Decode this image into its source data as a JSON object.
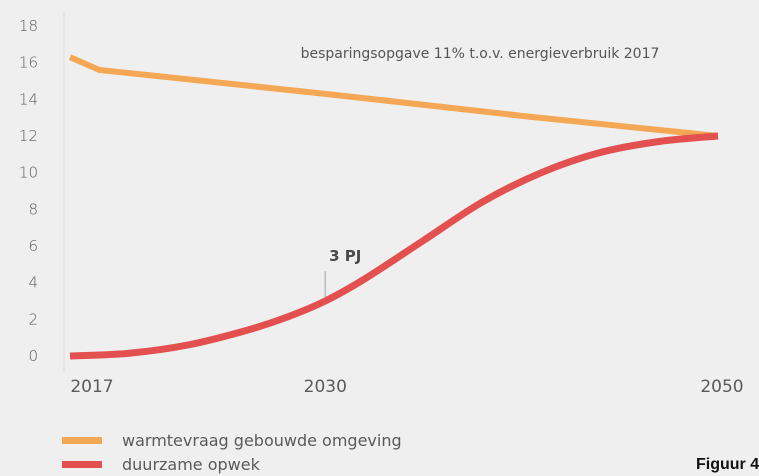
{
  "chart_data": {
    "type": "line",
    "x": [
      2017,
      2030,
      2050
    ],
    "x_ticks": [
      "2017",
      "2030",
      "2050"
    ],
    "y_ticks": [
      "0",
      "2",
      "4",
      "6",
      "8",
      "10",
      "12",
      "14",
      "16",
      "18"
    ],
    "ylim": [
      0,
      18
    ],
    "xlim": [
      2017,
      2050
    ],
    "grid": false,
    "legend_position": "bottom-left",
    "annotation": "besparingsopgave 11% t.o.v. energieverbruik 2017",
    "data_label": {
      "text": "3 PJ",
      "x": 2030,
      "y": 3
    },
    "series": [
      {
        "name": "warmtevraag gebouwde omgeving",
        "color": "#f4a855",
        "points": [
          [
            2017,
            16.3
          ],
          [
            2018.5,
            15.6
          ],
          [
            2030,
            14.3
          ],
          [
            2040,
            13.1
          ],
          [
            2050,
            12.0
          ]
        ]
      },
      {
        "name": "duurzame opwek",
        "color": "#e2514f",
        "points": [
          [
            2017,
            0.0
          ],
          [
            2020,
            0.15
          ],
          [
            2023,
            0.6
          ],
          [
            2026,
            1.4
          ],
          [
            2028,
            2.1
          ],
          [
            2030,
            3.0
          ],
          [
            2032,
            4.2
          ],
          [
            2035,
            6.3
          ],
          [
            2038,
            8.4
          ],
          [
            2041,
            10.0
          ],
          [
            2044,
            11.1
          ],
          [
            2047,
            11.7
          ],
          [
            2050,
            12.0
          ]
        ]
      }
    ]
  },
  "figure_caption": "Figuur 4"
}
